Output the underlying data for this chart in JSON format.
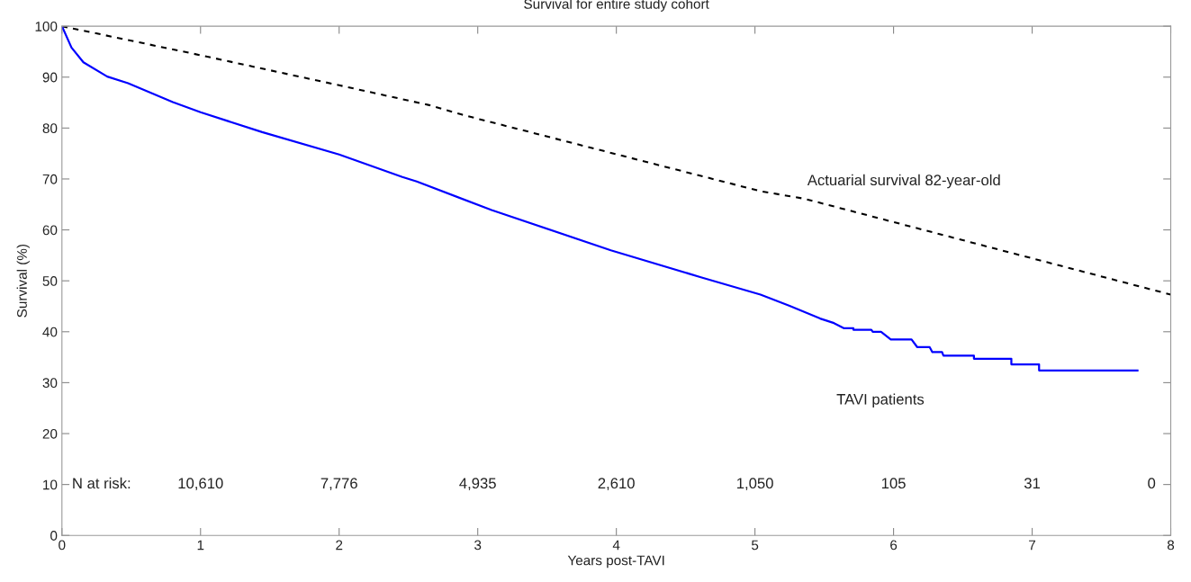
{
  "chart_data": {
    "type": "line",
    "title": "Survival for entire study cohort",
    "xlabel": "Years post-TAVI",
    "ylabel": "Survival (%)",
    "xlim": [
      0,
      8
    ],
    "ylim": [
      0,
      100
    ],
    "xticks": [
      0,
      1,
      2,
      3,
      4,
      5,
      6,
      7,
      8
    ],
    "yticks": [
      0,
      10,
      20,
      30,
      40,
      50,
      60,
      70,
      80,
      90,
      100
    ],
    "grid": false,
    "legend": false,
    "series": [
      {
        "name": "Actuarial survival 82-year-old",
        "color": "#000000",
        "line_style": "dashed",
        "x": [
          0,
          1,
          2,
          2.65,
          2.89,
          5.04,
          5.36,
          8
        ],
        "values": [
          100,
          94.3,
          88.4,
          84.5,
          82.6,
          67.6,
          66.1,
          47.3
        ]
      },
      {
        "name": "TAVI patients",
        "color": "#0000ff",
        "line_style": "solid",
        "x": [
          0,
          0.069,
          0.155,
          0.327,
          0.477,
          0.8,
          1.0,
          1.445,
          2.0,
          2.456,
          2.56,
          3.1,
          3.96,
          4.61,
          5.04,
          5.25,
          5.47,
          5.57,
          5.64,
          5.71,
          5.71,
          5.84,
          5.85,
          5.91,
          5.98,
          6.13,
          6.17,
          6.26,
          6.28,
          6.35,
          6.36,
          6.58,
          6.58,
          6.85,
          6.85,
          7.05,
          7.05,
          7.76
        ],
        "values": [
          100,
          95.8,
          92.9,
          90.1,
          88.8,
          85.1,
          83.1,
          79.2,
          74.8,
          70.4,
          69.5,
          63.9,
          56.0,
          50.7,
          47.3,
          45.1,
          42.6,
          41.7,
          40.7,
          40.7,
          40.4,
          40.4,
          40.0,
          40.0,
          38.5,
          38.5,
          37.0,
          37.0,
          36.0,
          36.0,
          35.3,
          35.3,
          34.7,
          34.7,
          33.6,
          33.6,
          32.4,
          32.4
        ]
      }
    ],
    "annotations": [
      "N at risk:",
      "10,610",
      "7,776",
      "4,935",
      "2,610",
      "1,050",
      "105",
      "31",
      "0"
    ]
  }
}
